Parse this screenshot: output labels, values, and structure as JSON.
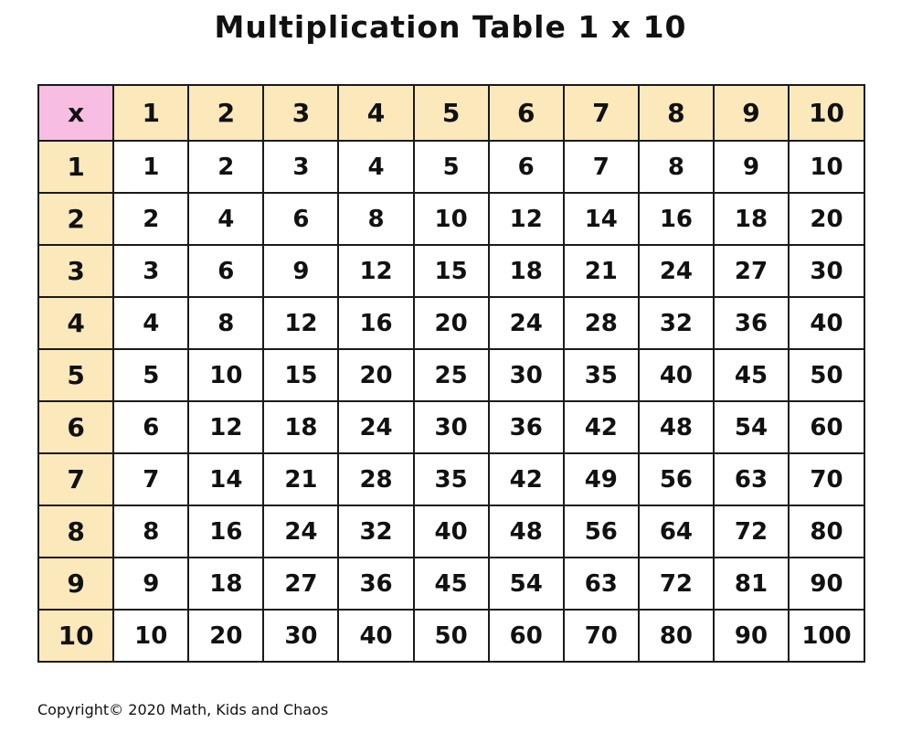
{
  "title": "Multiplication Table 1 x 10",
  "corner_label": "x",
  "column_headers": [
    "1",
    "2",
    "3",
    "4",
    "5",
    "6",
    "7",
    "8",
    "9",
    "10"
  ],
  "row_headers": [
    "1",
    "2",
    "3",
    "4",
    "5",
    "6",
    "7",
    "8",
    "9",
    "10"
  ],
  "rows": [
    [
      "1",
      "2",
      "3",
      "4",
      "5",
      "6",
      "7",
      "8",
      "9",
      "10"
    ],
    [
      "2",
      "4",
      "6",
      "8",
      "10",
      "12",
      "14",
      "16",
      "18",
      "20"
    ],
    [
      "3",
      "6",
      "9",
      "12",
      "15",
      "18",
      "21",
      "24",
      "27",
      "30"
    ],
    [
      "4",
      "8",
      "12",
      "16",
      "20",
      "24",
      "28",
      "32",
      "36",
      "40"
    ],
    [
      "5",
      "10",
      "15",
      "20",
      "25",
      "30",
      "35",
      "40",
      "45",
      "50"
    ],
    [
      "6",
      "12",
      "18",
      "24",
      "30",
      "36",
      "42",
      "48",
      "54",
      "60"
    ],
    [
      "7",
      "14",
      "21",
      "28",
      "35",
      "42",
      "49",
      "56",
      "63",
      "70"
    ],
    [
      "8",
      "16",
      "24",
      "32",
      "40",
      "48",
      "56",
      "64",
      "72",
      "80"
    ],
    [
      "9",
      "18",
      "27",
      "36",
      "45",
      "54",
      "63",
      "72",
      "81",
      "90"
    ],
    [
      "10",
      "20",
      "30",
      "40",
      "50",
      "60",
      "70",
      "80",
      "90",
      "100"
    ]
  ],
  "colors": {
    "corner": "#f8bde2",
    "header": "#fbe9bb",
    "cell": "#ffffff"
  },
  "copyright": "Copyright© 2020 Math, Kids and Chaos"
}
